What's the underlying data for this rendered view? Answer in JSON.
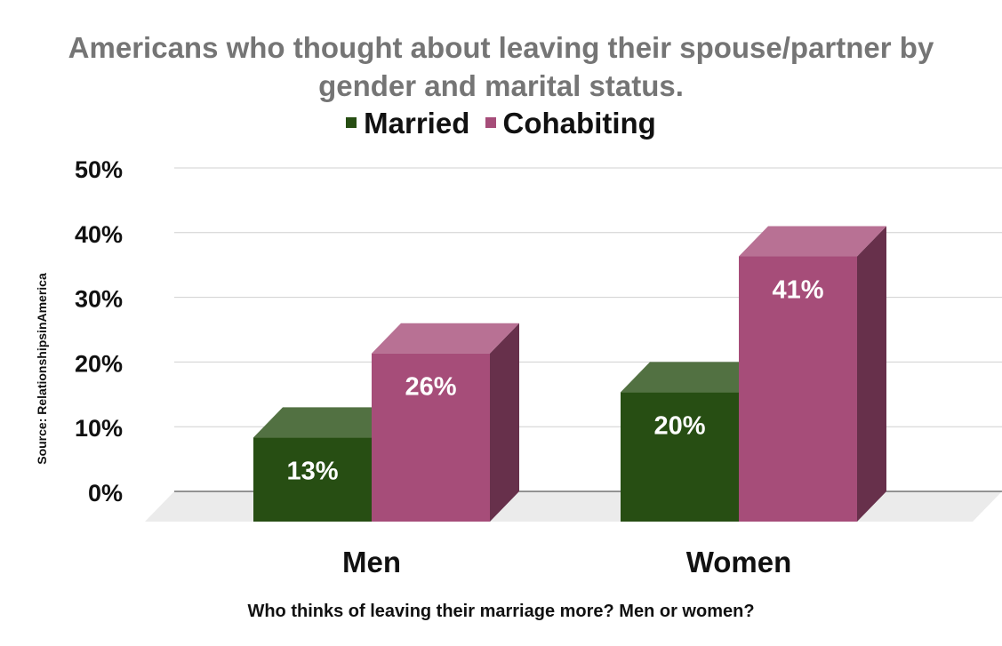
{
  "chart_data": {
    "type": "bar",
    "title_lines": [
      "Americans who thought about leaving their spouse/partner by",
      "gender and marital status."
    ],
    "categories": [
      "Men",
      "Women"
    ],
    "series": [
      {
        "name": "Married",
        "values": [
          13,
          20
        ],
        "labels": [
          "13%",
          "20%"
        ],
        "color": "#274e13"
      },
      {
        "name": "Cohabiting",
        "values": [
          26,
          41
        ],
        "labels": [
          "26%",
          "41%"
        ],
        "color": "#a64d79"
      }
    ],
    "y_ticks": [
      "0%",
      "10%",
      "20%",
      "30%",
      "40%",
      "50%"
    ],
    "ylim": [
      0,
      50
    ],
    "xlabel": "Who thinks of leaving their marriage more? Men or women?",
    "side_note": "Source: RelationshipsinAmerica",
    "grid": true,
    "legend_position": "top",
    "style": "3d"
  }
}
